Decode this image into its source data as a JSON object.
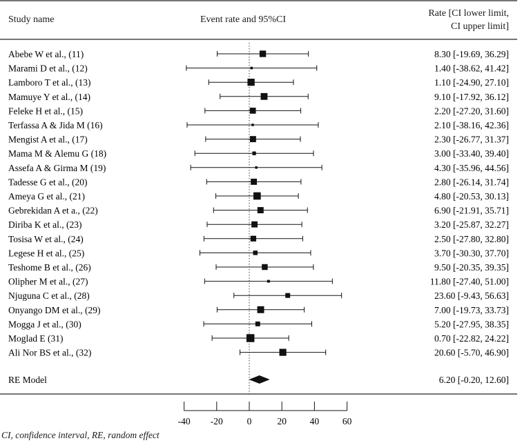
{
  "chart_data": {
    "type": "forest",
    "header": {
      "study": "Study name",
      "plot": "Event rate and 95%CI",
      "rate_line1": "Rate [CI lower limit,",
      "rate_line2": "CI upper limit]"
    },
    "studies": [
      {
        "name": "Abebe W et al., (11)",
        "rate": 8.3,
        "lower": -19.69,
        "upper": 36.29,
        "text": "8.30 [-19.69, 36.29]"
      },
      {
        "name": "Marami D et al., (12)",
        "rate": 1.4,
        "lower": -38.62,
        "upper": 41.42,
        "text": "1.40 [-38.62, 41.42]"
      },
      {
        "name": "Lamboro T et al., (13)",
        "rate": 1.1,
        "lower": -24.9,
        "upper": 27.1,
        "text": "1.10 [-24.90, 27.10]"
      },
      {
        "name": "Mamuye Y et al., (14)",
        "rate": 9.1,
        "lower": -17.92,
        "upper": 36.12,
        "text": "9.10 [-17.92, 36.12]"
      },
      {
        "name": "Feleke H et al., (15)",
        "rate": 2.2,
        "lower": -27.2,
        "upper": 31.6,
        "text": "2.20 [-27.20, 31.60]"
      },
      {
        "name": "Terfassa A & Jida M (16)",
        "rate": 2.1,
        "lower": -38.16,
        "upper": 42.36,
        "text": "2.10 [-38.16, 42.36]"
      },
      {
        "name": "Mengist A et al., (17)",
        "rate": 2.3,
        "lower": -26.77,
        "upper": 31.37,
        "text": "2.30 [-26.77, 31.37]"
      },
      {
        "name": "Mama M & Alemu G (18)",
        "rate": 3.0,
        "lower": -33.4,
        "upper": 39.4,
        "text": "3.00 [-33.40, 39.40]"
      },
      {
        "name": "Assefa A & Girma M (19)",
        "rate": 4.3,
        "lower": -35.96,
        "upper": 44.56,
        "text": "4.30 [-35.96, 44.56]"
      },
      {
        "name": "Tadesse G et al., (20)",
        "rate": 2.8,
        "lower": -26.14,
        "upper": 31.74,
        "text": "2.80 [-26.14, 31.74]"
      },
      {
        "name": "Ameya G et al., (21)",
        "rate": 4.8,
        "lower": -20.53,
        "upper": 30.13,
        "text": "4.80 [-20.53, 30.13]"
      },
      {
        "name": "Gebrekidan A et a., (22)",
        "rate": 6.9,
        "lower": -21.91,
        "upper": 35.71,
        "text": "6.90 [-21.91, 35.71]"
      },
      {
        "name": "Diriba K et al., (23)",
        "rate": 3.2,
        "lower": -25.87,
        "upper": 32.27,
        "text": "3.20 [-25.87, 32.27]"
      },
      {
        "name": "Tosisa W et al., (24)",
        "rate": 2.5,
        "lower": -27.8,
        "upper": 32.8,
        "text": "2.50 [-27.80, 32.80]"
      },
      {
        "name": "Legese H et al., (25)",
        "rate": 3.7,
        "lower": -30.3,
        "upper": 37.7,
        "text": "3.70 [-30.30, 37.70]"
      },
      {
        "name": "Teshome B et al., (26)",
        "rate": 9.5,
        "lower": -20.35,
        "upper": 39.35,
        "text": "9.50 [-20.35, 39.35]"
      },
      {
        "name": "Olipher M et al., (27)",
        "rate": 11.8,
        "lower": -27.4,
        "upper": 51.0,
        "text": "11.80 [-27.40, 51.00]"
      },
      {
        "name": "Njuguna C et al., (28)",
        "rate": 23.6,
        "lower": -9.43,
        "upper": 56.63,
        "text": "23.60 [-9.43, 56.63]"
      },
      {
        "name": "Onyango DM et al., (29)",
        "rate": 7.0,
        "lower": -19.73,
        "upper": 33.73,
        "text": "7.00 [-19.73, 33.73]"
      },
      {
        "name": "Mogga J et al., (30)",
        "rate": 5.2,
        "lower": -27.95,
        "upper": 38.35,
        "text": "5.20 [-27.95, 38.35]"
      },
      {
        "name": "Moglad E (31)",
        "rate": 0.7,
        "lower": -22.82,
        "upper": 24.22,
        "text": "0.70 [-22.82, 24.22]"
      },
      {
        "name": "Ali Nor BS et al., (32)",
        "rate": 20.6,
        "lower": -5.7,
        "upper": 46.9,
        "text": "20.60 [-5.70, 46.90]"
      }
    ],
    "summary": {
      "name": "RE Model",
      "rate": 6.2,
      "lower": -0.2,
      "upper": 12.6,
      "text": "6.20 [-0.20, 12.60]"
    },
    "x_axis": {
      "ticks": [
        -40,
        -20,
        0,
        20,
        40,
        60
      ],
      "tick_labels": [
        "-40",
        "-20",
        "0",
        "20",
        "40",
        "60"
      ],
      "range": [
        -40,
        60
      ]
    },
    "reference_line": 0
  },
  "footnote": "CI, confidence interval, RE, random effect"
}
